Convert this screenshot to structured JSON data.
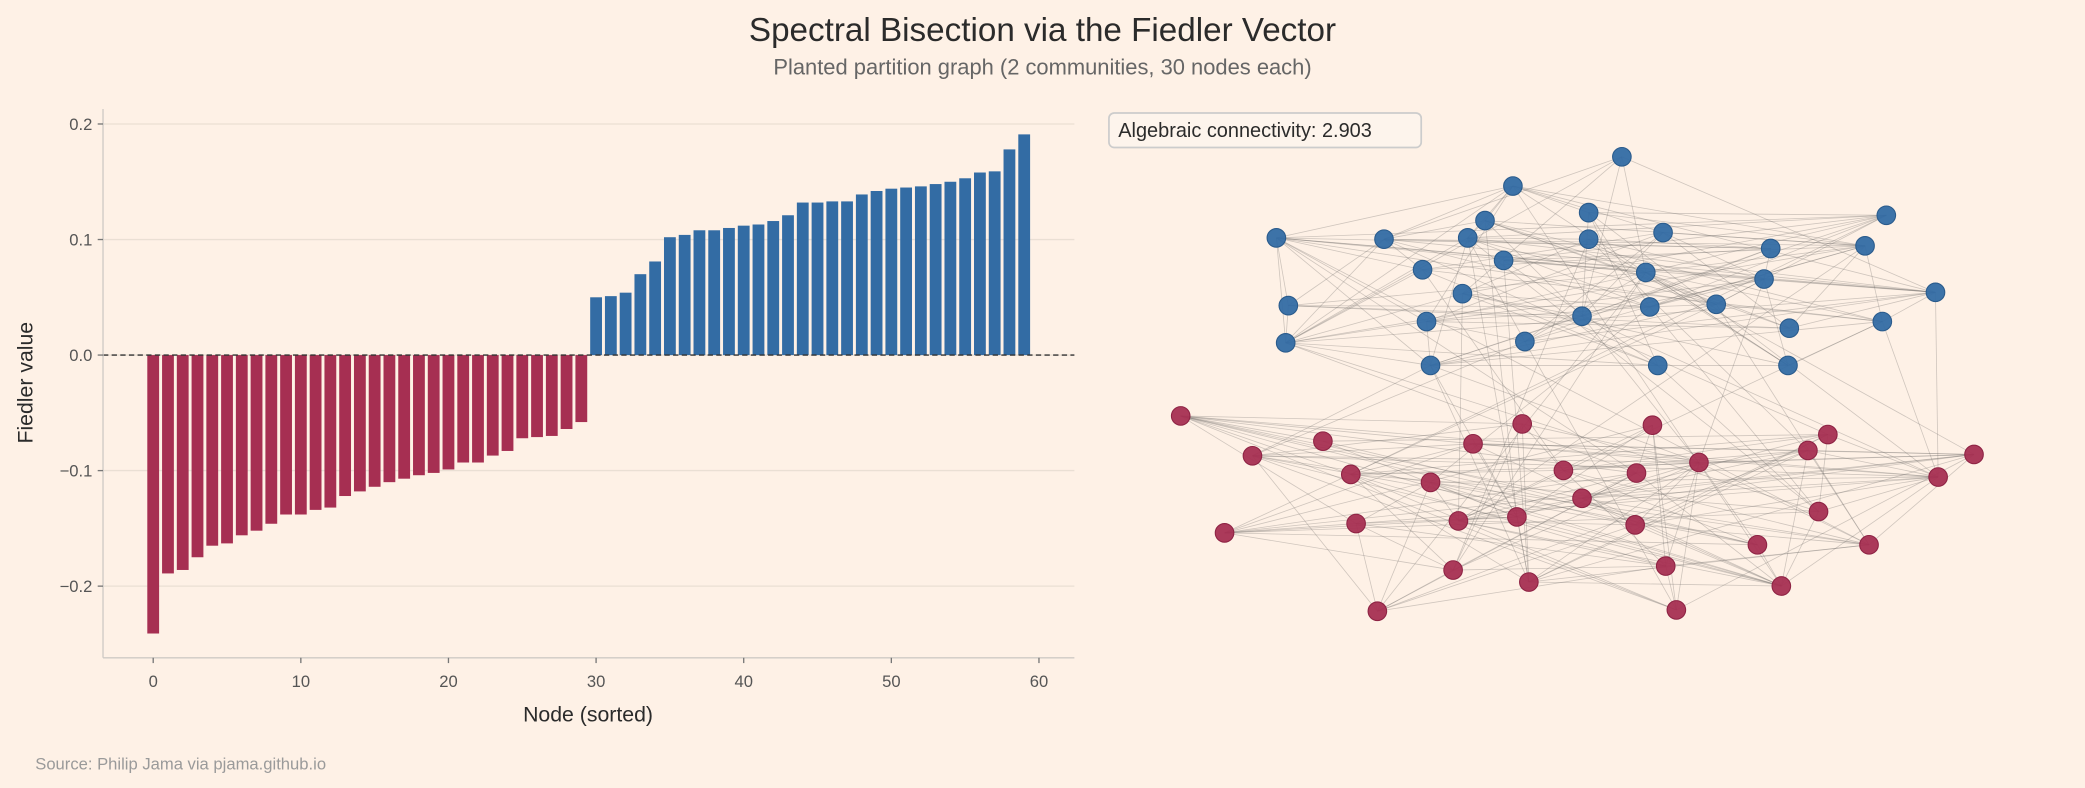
{
  "title": "Spectral Bisection via the Fiedler Vector",
  "subtitle": "Planted partition graph (2 communities, 30 nodes each)",
  "source": "Source: Philip Jama via pjama.github.io",
  "colors": {
    "background": "#fef1e6",
    "community_a": "#a62f52",
    "community_b": "#336ca4",
    "edge": "#6e6a66",
    "grid": "#eadfd4"
  },
  "chart_data": [
    {
      "type": "bar",
      "xlabel": "Node (sorted)",
      "ylabel": "Fiedler value",
      "xlim": [
        -3.4,
        62.4
      ],
      "ylim": [
        -0.262,
        0.213
      ],
      "xticks": [
        0,
        10,
        20,
        30,
        40,
        50,
        60
      ],
      "yticks": [
        -0.2,
        -0.1,
        0.0,
        0.1,
        0.2
      ],
      "ytick_labels": [
        "−0.2",
        "−0.1",
        "0.0",
        "0.1",
        "0.2"
      ],
      "grid": "horizontal",
      "reference_line": {
        "y": 0.0,
        "style": "dashed"
      },
      "x": [
        0,
        1,
        2,
        3,
        4,
        5,
        6,
        7,
        8,
        9,
        10,
        11,
        12,
        13,
        14,
        15,
        16,
        17,
        18,
        19,
        20,
        21,
        22,
        23,
        24,
        25,
        26,
        27,
        28,
        29,
        30,
        31,
        32,
        33,
        34,
        35,
        36,
        37,
        38,
        39,
        40,
        41,
        42,
        43,
        44,
        45,
        46,
        47,
        48,
        49,
        50,
        51,
        52,
        53,
        54,
        55,
        56,
        57,
        58,
        59
      ],
      "values": [
        -0.241,
        -0.189,
        -0.186,
        -0.175,
        -0.165,
        -0.163,
        -0.156,
        -0.152,
        -0.146,
        -0.138,
        -0.138,
        -0.134,
        -0.132,
        -0.122,
        -0.118,
        -0.114,
        -0.11,
        -0.107,
        -0.104,
        -0.102,
        -0.099,
        -0.093,
        -0.093,
        -0.087,
        -0.083,
        -0.072,
        -0.071,
        -0.07,
        -0.064,
        -0.058,
        0.05,
        0.051,
        0.054,
        0.07,
        0.081,
        0.102,
        0.104,
        0.108,
        0.108,
        0.11,
        0.112,
        0.113,
        0.116,
        0.121,
        0.132,
        0.132,
        0.133,
        0.133,
        0.139,
        0.142,
        0.144,
        0.145,
        0.146,
        0.148,
        0.15,
        0.153,
        0.158,
        0.159,
        0.178,
        0.191
      ],
      "bar_colors": "negative = community_a, positive = community_b"
    },
    {
      "type": "network",
      "annotation": "Algebraic connectivity: 2.903",
      "communities": [
        {
          "size": 30,
          "color": "#336ca4"
        },
        {
          "size": 30,
          "color": "#a62f52"
        }
      ]
    }
  ]
}
